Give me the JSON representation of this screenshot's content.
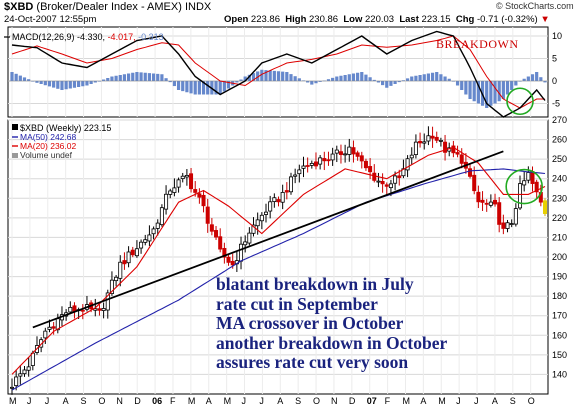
{
  "header": {
    "symbol": "$XBD",
    "name": "(Broker/Dealer Index - AMEX)",
    "exchange": "INDX",
    "date": "24-Oct-2007 12:55pm",
    "open_label": "Open",
    "open": "223.86",
    "high_label": "High",
    "high": "230.86",
    "low_label": "Low",
    "low": "220.03",
    "last_label": "Last",
    "last": "223.15",
    "chg_label": "Chg",
    "chg": "-0.71 (-0.32%)",
    "chg_arrow": "▼",
    "credit": "© StockCharts.com"
  },
  "macd_legend": {
    "label": "MACD(12,26,9)",
    "v1": "-4.330",
    "v2": "-4.017",
    "v3": "-0.313",
    "annotation": "BREAKDOWN"
  },
  "price_legend": {
    "title": "$XBD (Weekly) 223.15",
    "ma50": "MA(50) 242.68",
    "ma20": "MA(20) 236.02",
    "volume": "Volume undef"
  },
  "notes": [
    "blatant breakdown in July",
    "rate cut in September",
    "MA crossover in October",
    "another breakdown in October",
    "assures rate cut very soon"
  ],
  "colors": {
    "up": "#000000",
    "down": "#cc0000",
    "ma20": "#dd0000",
    "ma50": "#2222aa",
    "macd_line": "#000000",
    "signal_line": "#dd0000",
    "histogram": "#6688cc",
    "circle": "#22aa22",
    "note_text": "#1a237e",
    "last_bar": "#e8d000"
  },
  "chart_data": [
    {
      "type": "line",
      "title": "MACD(12,26,9)",
      "x_unit": "weeks since May 2005",
      "ylim": [
        -8,
        12
      ],
      "y_ticks": [
        10,
        5,
        0,
        -5
      ],
      "x": [
        0,
        6,
        12,
        18,
        24,
        30,
        36,
        40,
        44,
        50,
        56,
        60,
        66,
        72,
        78,
        84,
        90,
        96,
        102,
        106,
        110,
        114,
        118,
        122,
        126,
        128
      ],
      "series": [
        {
          "name": "MACD",
          "values": [
            8,
            7.4,
            4,
            3,
            6,
            9,
            10,
            6,
            1,
            -3,
            0,
            4,
            6,
            4,
            7,
            10,
            6,
            9,
            11,
            10,
            3,
            -5,
            -8,
            -6,
            -2,
            -4.33
          ]
        },
        {
          "name": "Signal",
          "values": [
            6,
            7.8,
            6,
            4,
            5,
            7,
            8.5,
            8,
            4,
            0,
            -1,
            1.5,
            4,
            4.8,
            6,
            8,
            7.5,
            8,
            9,
            10,
            7,
            1,
            -4,
            -6,
            -4,
            -4.02
          ]
        },
        {
          "name": "Histogram",
          "values": [
            2,
            -0.4,
            -2,
            -1,
            1,
            2,
            1.5,
            -2,
            -3,
            -3,
            1,
            2.5,
            2,
            -0.8,
            1,
            2,
            -1.5,
            1,
            2,
            0,
            -4,
            -6,
            -4,
            0,
            2,
            -0.31
          ]
        }
      ]
    },
    {
      "type": "candlestick",
      "title": "$XBD (Weekly)",
      "x_unit": "weeks since May 2005",
      "x_tick_labels": [
        "M",
        "J",
        "J",
        "A",
        "S",
        "O",
        "N",
        "D",
        "06",
        "F",
        "M",
        "A",
        "M",
        "J",
        "J",
        "A",
        "S",
        "O",
        "N",
        "D",
        "07",
        "F",
        "M",
        "A",
        "M",
        "J",
        "J",
        "A",
        "S",
        "O"
      ],
      "ylim": [
        130,
        270
      ],
      "y_ticks": [
        140,
        150,
        160,
        170,
        180,
        190,
        200,
        210,
        220,
        230,
        240,
        250,
        260,
        270
      ],
      "price_path": {
        "x": [
          0,
          4,
          8,
          13,
          17,
          21,
          26,
          30,
          34,
          38,
          42,
          46,
          50,
          53,
          57,
          61,
          65,
          69,
          73,
          77,
          81,
          85,
          89,
          93,
          97,
          101,
          104,
          108,
          112,
          116,
          118,
          120,
          122,
          124,
          126,
          128
        ],
        "values": [
          135,
          145,
          162,
          172,
          174,
          171,
          196,
          205,
          214,
          235,
          241,
          225,
          202,
          196,
          213,
          224,
          232,
          245,
          249,
          251,
          256,
          245,
          237,
          240,
          257,
          263,
          255,
          250,
          228,
          225,
          213,
          218,
          235,
          242,
          232,
          223.15
        ]
      },
      "ma20": {
        "x": [
          0,
          10,
          20,
          30,
          40,
          46,
          52,
          60,
          70,
          80,
          90,
          100,
          106,
          112,
          118,
          124,
          128
        ],
        "values": [
          140,
          162,
          174,
          195,
          228,
          234,
          226,
          212,
          232,
          245,
          240,
          252,
          256,
          248,
          232,
          232,
          236.02
        ]
      },
      "ma50": {
        "x": [
          0,
          20,
          40,
          55,
          70,
          85,
          100,
          110,
          118,
          124,
          128
        ],
        "values": [
          132,
          156,
          178,
          198,
          212,
          228,
          238,
          244,
          245,
          243.5,
          242.68
        ]
      },
      "trendlines": [
        {
          "x": [
            5,
            118
          ],
          "values": [
            164,
            254
          ]
        }
      ],
      "annotations": [
        "blatant breakdown in July",
        "rate cut in September",
        "MA crossover in October",
        "another breakdown in October",
        "assures rate cut very soon"
      ]
    }
  ]
}
